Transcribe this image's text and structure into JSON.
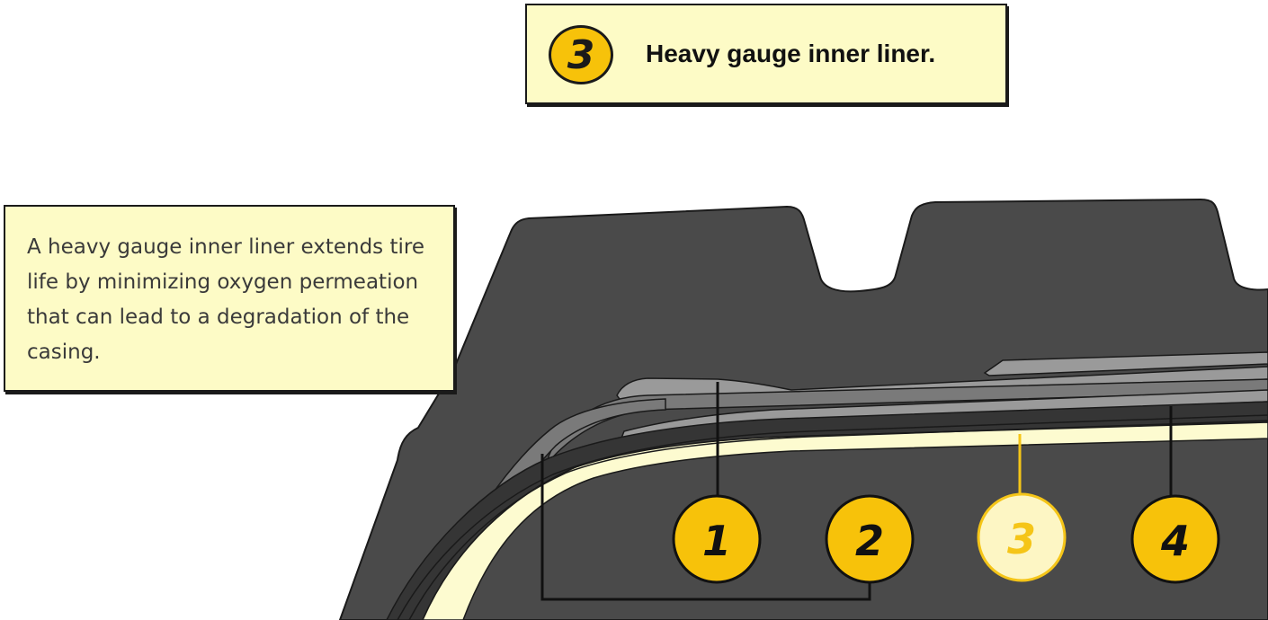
{
  "title": {
    "number": "3",
    "text": "Heavy gauge inner liner."
  },
  "description": "A heavy gauge inner liner extends tire life by minimizing oxygen permeation that can lead to a degradation of the casing.",
  "callouts": [
    {
      "label": "1",
      "highlighted": false
    },
    {
      "label": "2",
      "highlighted": false
    },
    {
      "label": "3",
      "highlighted": true
    },
    {
      "label": "4",
      "highlighted": false
    }
  ],
  "colors": {
    "badge_fill": "#f7c20a",
    "badge_faded_fill": "#fdf6c4",
    "badge_faded_stroke": "#f5c518",
    "box_fill": "#fdfbc6",
    "rubber_dark": "#4a4a4a",
    "ply_light": "#9a9a9a",
    "ply_mid": "#7a7a7a",
    "ply_dark": "#353535",
    "inner_liner": "#fdfbd0"
  }
}
